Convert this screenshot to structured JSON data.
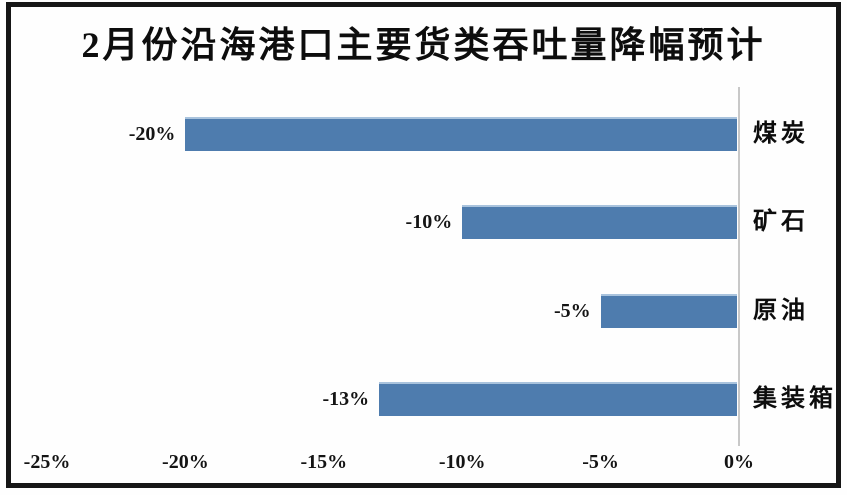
{
  "chart_data": {
    "type": "bar",
    "orientation": "horizontal",
    "title": "2月份沿海港口主要货类吞吐量降幅预计",
    "categories": [
      "煤炭",
      "矿石",
      "原油",
      "集装箱"
    ],
    "values": [
      -20,
      -10,
      -5,
      -13
    ],
    "value_labels": [
      "-20%",
      "-10%",
      "-5%",
      "-13%"
    ],
    "x_ticks": [
      {
        "value": -25,
        "label": "-25%"
      },
      {
        "value": -20,
        "label": "-20%"
      },
      {
        "value": -15,
        "label": "-15%"
      },
      {
        "value": -10,
        "label": "-10%"
      },
      {
        "value": -5,
        "label": "-5%"
      },
      {
        "value": 0,
        "label": "0%"
      }
    ],
    "xlim": [
      -25,
      0
    ],
    "grid": false,
    "legend_position": "none",
    "colors": {
      "bar": "#4e7cae",
      "bar_highlight": "#a9c3dd",
      "axis_line": "#c8c8c8",
      "frame": "#161616",
      "text": "#0d0d0d",
      "background": "#fefefe"
    }
  }
}
